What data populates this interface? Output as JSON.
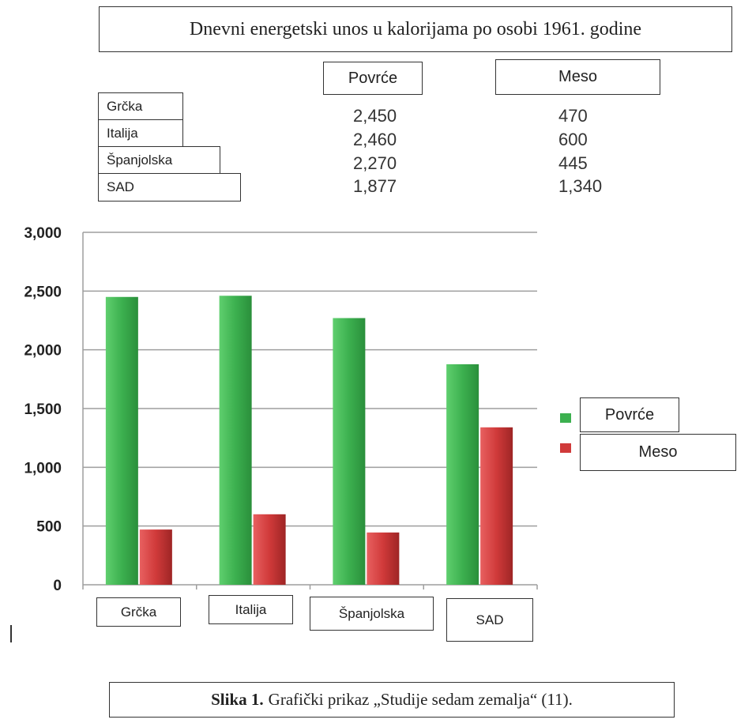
{
  "title": "Dnevni energetski unos u kalorijama po osobi 1961. godine",
  "table": {
    "headers": [
      "Povrće",
      "Meso"
    ],
    "rows": [
      {
        "country": "Grčka",
        "povrce": "2,450",
        "meso": "470"
      },
      {
        "country": "Italija",
        "povrce": "2,460",
        "meso": "600"
      },
      {
        "country": "Španjolska",
        "povrce": "2,270",
        "meso": "445"
      },
      {
        "country": "SAD",
        "povrce": "1,877",
        "meso": "1,340"
      }
    ]
  },
  "caption": {
    "bold": "Slika 1.",
    "text": "Grafički prikaz  „Studije sedam zemalja“ (11)."
  },
  "colors": {
    "povrce": "#3cb04f",
    "meso": "#d03a3a",
    "grid": "#9e9e9e"
  },
  "chart_data": {
    "type": "bar",
    "categories": [
      "Grčka",
      "Italija",
      "Španjolska",
      "SAD"
    ],
    "series": [
      {
        "name": "Povrće",
        "values": [
          2450,
          2460,
          2270,
          1877
        ]
      },
      {
        "name": "Meso",
        "values": [
          470,
          600,
          445,
          1340
        ]
      }
    ],
    "y_ticks": [
      "3,000",
      "2,500",
      "2,000",
      "1,500",
      "1,000",
      "500",
      "0"
    ],
    "ylim": [
      0,
      3000
    ],
    "grid": true,
    "legend": "right"
  }
}
